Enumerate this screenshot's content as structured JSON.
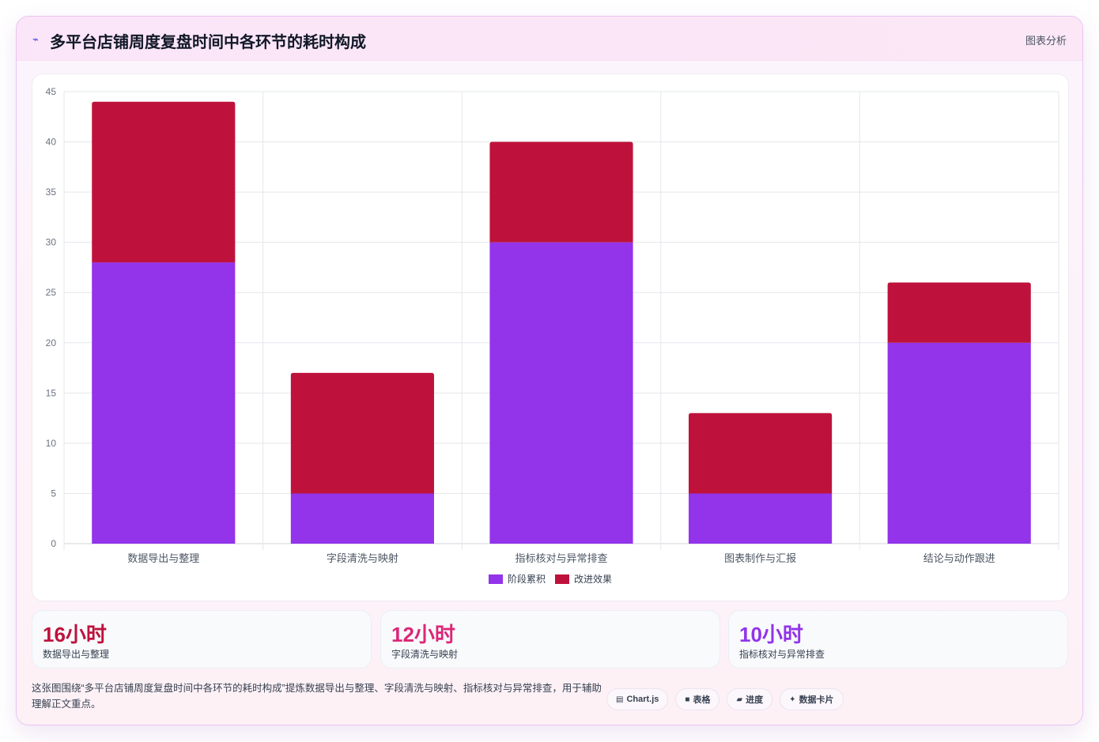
{
  "header": {
    "icon": "trend-icon",
    "icon_glyph": "⌁",
    "title": "多平台店铺周度复盘时间中各环节的耗时构成",
    "tag": "图表分析"
  },
  "chart_data": {
    "type": "bar",
    "stacked": true,
    "title": "",
    "xlabel": "",
    "ylabel": "",
    "categories": [
      "数据导出与整理",
      "字段清洗与映射",
      "指标核对与异常排查",
      "图表制作与汇报",
      "结论与动作跟进"
    ],
    "series": [
      {
        "name": "阶段累积",
        "color": "#9333ea",
        "values": [
          28,
          5,
          30,
          5,
          20
        ]
      },
      {
        "name": "改进效果",
        "color": "#be123c",
        "values": [
          16,
          12,
          10,
          8,
          6
        ]
      }
    ],
    "ylim": [
      0,
      45
    ],
    "yticks": [
      0,
      5,
      10,
      15,
      20,
      25,
      30,
      35,
      40,
      45
    ],
    "grid": true,
    "legend": "bottom-center"
  },
  "stats": [
    {
      "value": "16小时",
      "label": "数据导出与整理",
      "color": "#be123c"
    },
    {
      "value": "12小时",
      "label": "字段清洗与映射",
      "color": "#db2777"
    },
    {
      "value": "10小时",
      "label": "指标核对与异常排查",
      "color": "#9333ea"
    }
  ],
  "footer": {
    "text": "这张图围绕“多平台店铺周度复盘时间中各环节的耗时构成”提炼数据导出与整理、字段清洗与映射、指标核对与异常排查，用于辅助理解正文重点。"
  },
  "chips": [
    {
      "icon": "chart-icon",
      "glyph": "▤",
      "label": "Chart.js"
    },
    {
      "icon": "table-icon",
      "glyph": "■",
      "label": "表格"
    },
    {
      "icon": "progress-icon",
      "glyph": "▰",
      "label": "进度"
    },
    {
      "icon": "data-card-icon",
      "glyph": "✦",
      "label": "数据卡片"
    }
  ]
}
